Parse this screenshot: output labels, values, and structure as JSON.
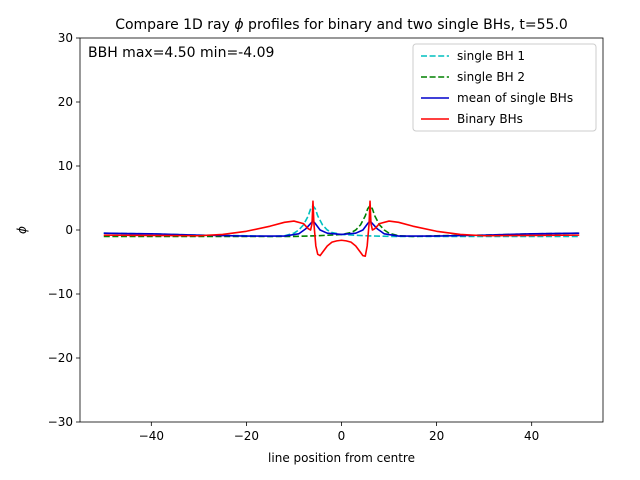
{
  "chart_data": {
    "type": "line",
    "title_prefix": "Compare 1D ray ",
    "title_symbol": "ϕ",
    "title_suffix": " profiles for binary and two single BHs, t=55.0",
    "xlabel": "line position from centre",
    "ylabel": "ϕ",
    "xlim": [
      -55,
      55
    ],
    "ylim": [
      -30,
      30
    ],
    "x_ticks": [
      -40,
      -20,
      0,
      20,
      40
    ],
    "y_ticks": [
      -30,
      -20,
      -10,
      0,
      10,
      20,
      30
    ],
    "annotation": "BBH max=4.50 min=-4.09",
    "legend_position": "top-right",
    "grid": false,
    "series": [
      {
        "name": "single BH 1",
        "color": "#00bfbf",
        "dash": "dashed",
        "points": [
          [
            -50,
            -0.5
          ],
          [
            -40,
            -0.6
          ],
          [
            -30,
            -0.8
          ],
          [
            -20,
            -0.9
          ],
          [
            -15,
            -1.0
          ],
          [
            -12,
            -0.9
          ],
          [
            -10,
            -0.5
          ],
          [
            -9,
            0.0
          ],
          [
            -8,
            0.8
          ],
          [
            -7,
            2.2
          ],
          [
            -6.5,
            3.3
          ],
          [
            -6,
            3.8
          ],
          [
            -5.5,
            3.3
          ],
          [
            -5,
            2.2
          ],
          [
            -4,
            0.8
          ],
          [
            -3,
            0.0
          ],
          [
            -2,
            -0.4
          ],
          [
            0,
            -0.7
          ],
          [
            5,
            -0.9
          ],
          [
            10,
            -1.0
          ],
          [
            20,
            -1.0
          ],
          [
            30,
            -1.0
          ],
          [
            40,
            -1.0
          ],
          [
            50,
            -1.0
          ]
        ]
      },
      {
        "name": "single BH 2",
        "color": "#008000",
        "dash": "dashed",
        "points": [
          [
            -50,
            -1.0
          ],
          [
            -40,
            -1.0
          ],
          [
            -30,
            -1.0
          ],
          [
            -20,
            -1.0
          ],
          [
            -10,
            -1.0
          ],
          [
            -5,
            -0.9
          ],
          [
            0,
            -0.7
          ],
          [
            2,
            -0.4
          ],
          [
            3,
            0.0
          ],
          [
            4,
            0.8
          ],
          [
            5,
            2.2
          ],
          [
            5.5,
            3.3
          ],
          [
            6,
            3.8
          ],
          [
            6.5,
            3.3
          ],
          [
            7,
            2.2
          ],
          [
            8,
            0.8
          ],
          [
            9,
            0.0
          ],
          [
            10,
            -0.5
          ],
          [
            12,
            -0.9
          ],
          [
            15,
            -1.0
          ],
          [
            20,
            -0.9
          ],
          [
            30,
            -0.8
          ],
          [
            40,
            -0.6
          ],
          [
            50,
            -0.5
          ]
        ]
      },
      {
        "name": "mean of single BHs",
        "color": "#0000cc",
        "dash": "solid",
        "points": [
          [
            -50,
            -0.5
          ],
          [
            -40,
            -0.6
          ],
          [
            -30,
            -0.8
          ],
          [
            -20,
            -0.95
          ],
          [
            -12,
            -0.95
          ],
          [
            -9,
            -0.6
          ],
          [
            -7.5,
            0.2
          ],
          [
            -6.5,
            1.0
          ],
          [
            -6,
            1.4
          ],
          [
            -5.5,
            1.0
          ],
          [
            -4.5,
            0.0
          ],
          [
            -3,
            -0.5
          ],
          [
            0,
            -0.7
          ],
          [
            3,
            -0.5
          ],
          [
            4.5,
            0.0
          ],
          [
            5.5,
            1.0
          ],
          [
            6,
            1.4
          ],
          [
            6.5,
            1.0
          ],
          [
            7.5,
            0.2
          ],
          [
            9,
            -0.6
          ],
          [
            12,
            -0.95
          ],
          [
            20,
            -0.95
          ],
          [
            30,
            -0.8
          ],
          [
            40,
            -0.6
          ],
          [
            50,
            -0.5
          ]
        ]
      },
      {
        "name": "Binary BHs",
        "color": "#ff0000",
        "dash": "solid",
        "points": [
          [
            -50,
            -0.8
          ],
          [
            -40,
            -0.85
          ],
          [
            -30,
            -0.9
          ],
          [
            -25,
            -0.7
          ],
          [
            -20,
            -0.2
          ],
          [
            -15,
            0.6
          ],
          [
            -12,
            1.2
          ],
          [
            -10,
            1.4
          ],
          [
            -8,
            1.0
          ],
          [
            -7,
            0.2
          ],
          [
            -6.5,
            0.0
          ],
          [
            -6.2,
            1.0
          ],
          [
            -6.0,
            4.5
          ],
          [
            -5.8,
            1.0
          ],
          [
            -5.4,
            -2.5
          ],
          [
            -5,
            -3.8
          ],
          [
            -4.5,
            -4.0
          ],
          [
            -4,
            -3.5
          ],
          [
            -3,
            -2.5
          ],
          [
            -2,
            -1.9
          ],
          [
            -1,
            -1.7
          ],
          [
            0,
            -1.6
          ],
          [
            1,
            -1.7
          ],
          [
            2,
            -1.9
          ],
          [
            3,
            -2.5
          ],
          [
            4,
            -3.5
          ],
          [
            4.5,
            -4.0
          ],
          [
            5,
            -4.09
          ],
          [
            5.4,
            -2.5
          ],
          [
            5.8,
            1.0
          ],
          [
            6.0,
            4.5
          ],
          [
            6.2,
            1.0
          ],
          [
            6.5,
            0.0
          ],
          [
            7,
            0.2
          ],
          [
            8,
            1.0
          ],
          [
            10,
            1.4
          ],
          [
            12,
            1.2
          ],
          [
            15,
            0.6
          ],
          [
            20,
            -0.2
          ],
          [
            25,
            -0.7
          ],
          [
            30,
            -0.9
          ],
          [
            40,
            -0.85
          ],
          [
            50,
            -0.8
          ]
        ]
      }
    ]
  }
}
